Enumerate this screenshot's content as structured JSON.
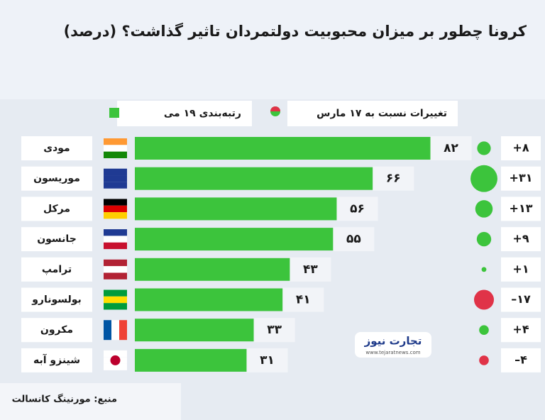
{
  "chart_data": {
    "type": "bar",
    "title": "کرونا چطور بر میزان محبوبیت دولتمردان تاثیر گذاشت؟ (درصد)",
    "categories": [
      "مودی",
      "موریسون",
      "مرکل",
      "جانسون",
      "ترامپ",
      "بولسونارو",
      "مکرون",
      "شینزو آبه"
    ],
    "series": [
      {
        "name": "رتبه‌بندی ۱۹ می",
        "color": "#3cc43c",
        "values": [
          82,
          66,
          56,
          55,
          43,
          41,
          33,
          31
        ],
        "value_labels": [
          "۸۲",
          "۶۶",
          "۵۶",
          "۵۵",
          "۴۳",
          "۴۱",
          "۳۳",
          "۳۱"
        ]
      },
      {
        "name": "تغییرات نسبت به ۱۷ مارس",
        "color": "#3cc43c",
        "negative_color": "#e03348",
        "values": [
          8,
          31,
          13,
          9,
          1,
          -17,
          4,
          -4
        ],
        "value_labels": [
          "+۸",
          "+۳۱",
          "+۱۳",
          "+۹",
          "+۱",
          "–۱۷",
          "+۴",
          "–۴"
        ]
      }
    ],
    "source": "منبع: مورنینگ کانسالت",
    "logo": {
      "name": "تجارت نیوز",
      "url": "www.tejaratnews.com"
    }
  }
}
